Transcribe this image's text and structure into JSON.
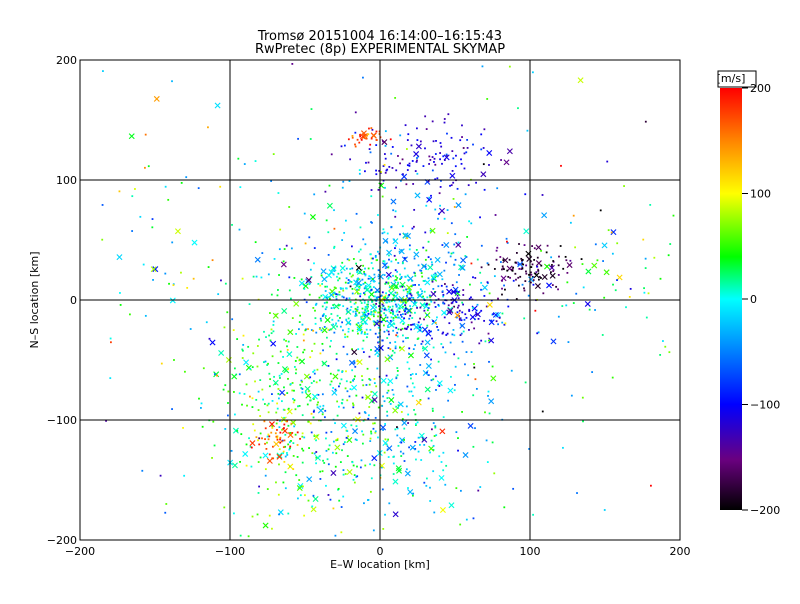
{
  "chart_data": {
    "type": "scatter",
    "title": "Tromsø 20151004 16:14:00–16:15:43",
    "subtitle": "RwPretec (8p) EXPERIMENTAL SKYMAP",
    "xlabel": "E–W location [km]",
    "ylabel": "N–S location [km]",
    "xlim": [
      -200,
      200
    ],
    "ylim": [
      -200,
      200
    ],
    "xticks": [
      "−200",
      "−100",
      "0",
      "100",
      "200"
    ],
    "yticks": [
      "−200",
      "−100",
      "0",
      "100",
      "200"
    ],
    "grid_values": [
      -100,
      0,
      100
    ],
    "colorbar": {
      "label": "[m/s]",
      "range": [
        -200,
        200
      ],
      "ticks": [
        "200",
        "100",
        "0",
        "−100",
        "−200"
      ]
    },
    "clusters": [
      {
        "x": -5,
        "y": 0,
        "sx": 22,
        "sy": 18,
        "vmean": 10,
        "vsd": 35,
        "n": 450
      },
      {
        "x": 10,
        "y": 10,
        "sx": 35,
        "sy": 45,
        "vmean": -30,
        "vsd": 40,
        "n": 350
      },
      {
        "x": -55,
        "y": -90,
        "sx": 28,
        "sy": 45,
        "vmean": 45,
        "vsd": 35,
        "n": 350
      },
      {
        "x": 0,
        "y": -110,
        "sx": 32,
        "sy": 40,
        "vmean": -10,
        "vsd": 45,
        "n": 300
      },
      {
        "x": 30,
        "y": 115,
        "sx": 22,
        "sy": 18,
        "vmean": -125,
        "vsd": 25,
        "n": 130
      },
      {
        "x": 100,
        "y": 28,
        "sx": 14,
        "sy": 10,
        "vmean": -185,
        "vsd": 15,
        "n": 110
      },
      {
        "x": 45,
        "y": -10,
        "sx": 22,
        "sy": 12,
        "vmean": -120,
        "vsd": 30,
        "n": 150
      },
      {
        "x": -10,
        "y": 135,
        "sx": 6,
        "sy": 4,
        "vmean": 165,
        "vsd": 20,
        "n": 30
      },
      {
        "x": -70,
        "y": -115,
        "sx": 8,
        "sy": 8,
        "vmean": 175,
        "vsd": 25,
        "n": 45
      },
      {
        "x": 0,
        "y": 0,
        "sx": 120,
        "sy": 110,
        "vmean": 0,
        "vsd": 100,
        "n": 320
      },
      {
        "x": 150,
        "y": 20,
        "sx": 40,
        "sy": 30,
        "vmean": 20,
        "vsd": 70,
        "n": 60
      },
      {
        "x": -140,
        "y": 60,
        "sx": 30,
        "sy": 40,
        "vmean": 20,
        "vsd": 60,
        "n": 25
      }
    ]
  }
}
